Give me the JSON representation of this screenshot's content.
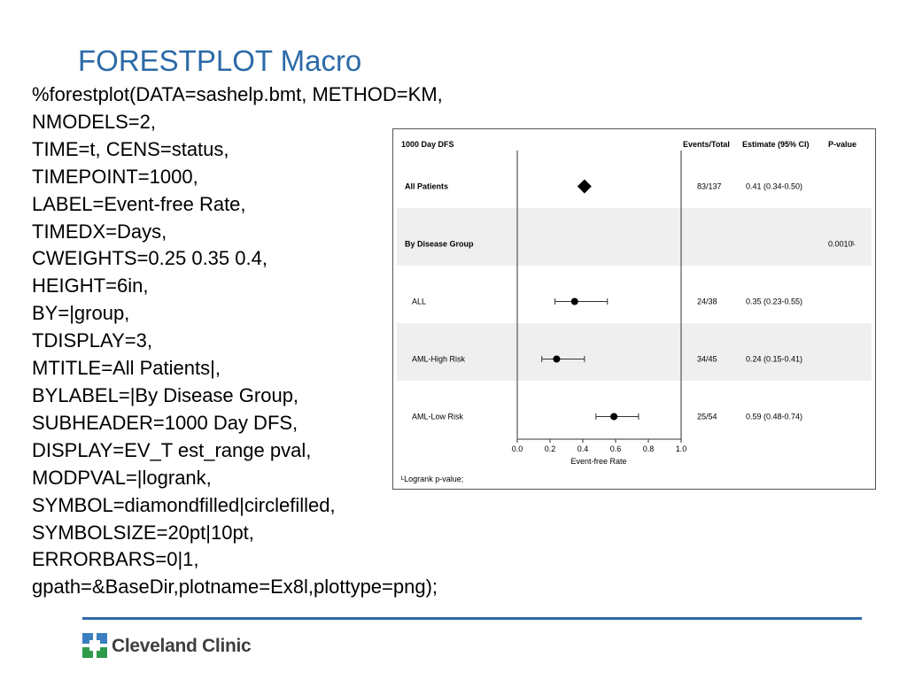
{
  "slide": {
    "title": "FORESTPLOT Macro",
    "code_lines": [
      "%forestplot(DATA=sashelp.bmt, METHOD=KM,",
      "NMODELS=2,",
      "TIME=t, CENS=status,",
      "TIMEPOINT=1000,",
      "LABEL=Event-free Rate,",
      "TIMEDX=Days,",
      "CWEIGHTS=0.25 0.35 0.4,",
      "HEIGHT=6in,",
      "BY=|group,",
      "TDISPLAY=3,",
      "MTITLE=All Patients|,",
      "BYLABEL=|By Disease Group,",
      "SUBHEADER=1000 Day DFS,",
      "DISPLAY=EV_T est_range pval,",
      "MODPVAL=|logrank,",
      "SYMBOL=diamondfilled|circlefilled,",
      "SYMBOLSIZE=20pt|10pt,",
      "ERRORBARS=0|1,",
      "gpath=&BaseDir,plotname=Ex8l,plottype=png);"
    ],
    "accent_color": "#2b6aa8"
  },
  "footer": {
    "logo_text": "Cleveland Clinic",
    "logo_colors": [
      "#3a7fbf",
      "#2e9a4a"
    ]
  },
  "chart_data": {
    "type": "forest",
    "subheader": "1000 Day DFS",
    "columns": {
      "events": "Events/Total",
      "estimate": "Estimate (95% CI)",
      "pvalue": "P-value"
    },
    "xlabel": "Event-free Rate",
    "xlim": [
      0.0,
      1.0
    ],
    "xticks": [
      "0.0",
      "0.2",
      "0.4",
      "0.6",
      "0.8",
      "1.0"
    ],
    "footnote": "ᴸLogrank p-value;",
    "rows": [
      {
        "label": "All Patients",
        "bold": true,
        "shaded": false,
        "symbol": "diamond",
        "estimate": 0.41,
        "lower": null,
        "upper": null,
        "events": "83/137",
        "estimate_text": "0.41 (0.34-0.50)",
        "pvalue": ""
      },
      {
        "label": "By Disease Group",
        "bold": true,
        "shaded": true,
        "symbol": "none",
        "estimate": null,
        "lower": null,
        "upper": null,
        "events": "",
        "estimate_text": "",
        "pvalue": "0.0010ᴸ"
      },
      {
        "label": "ALL",
        "bold": false,
        "shaded": false,
        "symbol": "circle",
        "estimate": 0.35,
        "lower": 0.23,
        "upper": 0.55,
        "events": "24/38",
        "estimate_text": "0.35 (0.23-0.55)",
        "pvalue": ""
      },
      {
        "label": "AML-High Risk",
        "bold": false,
        "shaded": true,
        "symbol": "circle",
        "estimate": 0.24,
        "lower": 0.15,
        "upper": 0.41,
        "events": "34/45",
        "estimate_text": "0.24 (0.15-0.41)",
        "pvalue": ""
      },
      {
        "label": "AML-Low Risk",
        "bold": false,
        "shaded": false,
        "symbol": "circle",
        "estimate": 0.59,
        "lower": 0.48,
        "upper": 0.74,
        "events": "25/54",
        "estimate_text": "0.59 (0.48-0.74)",
        "pvalue": ""
      }
    ]
  }
}
